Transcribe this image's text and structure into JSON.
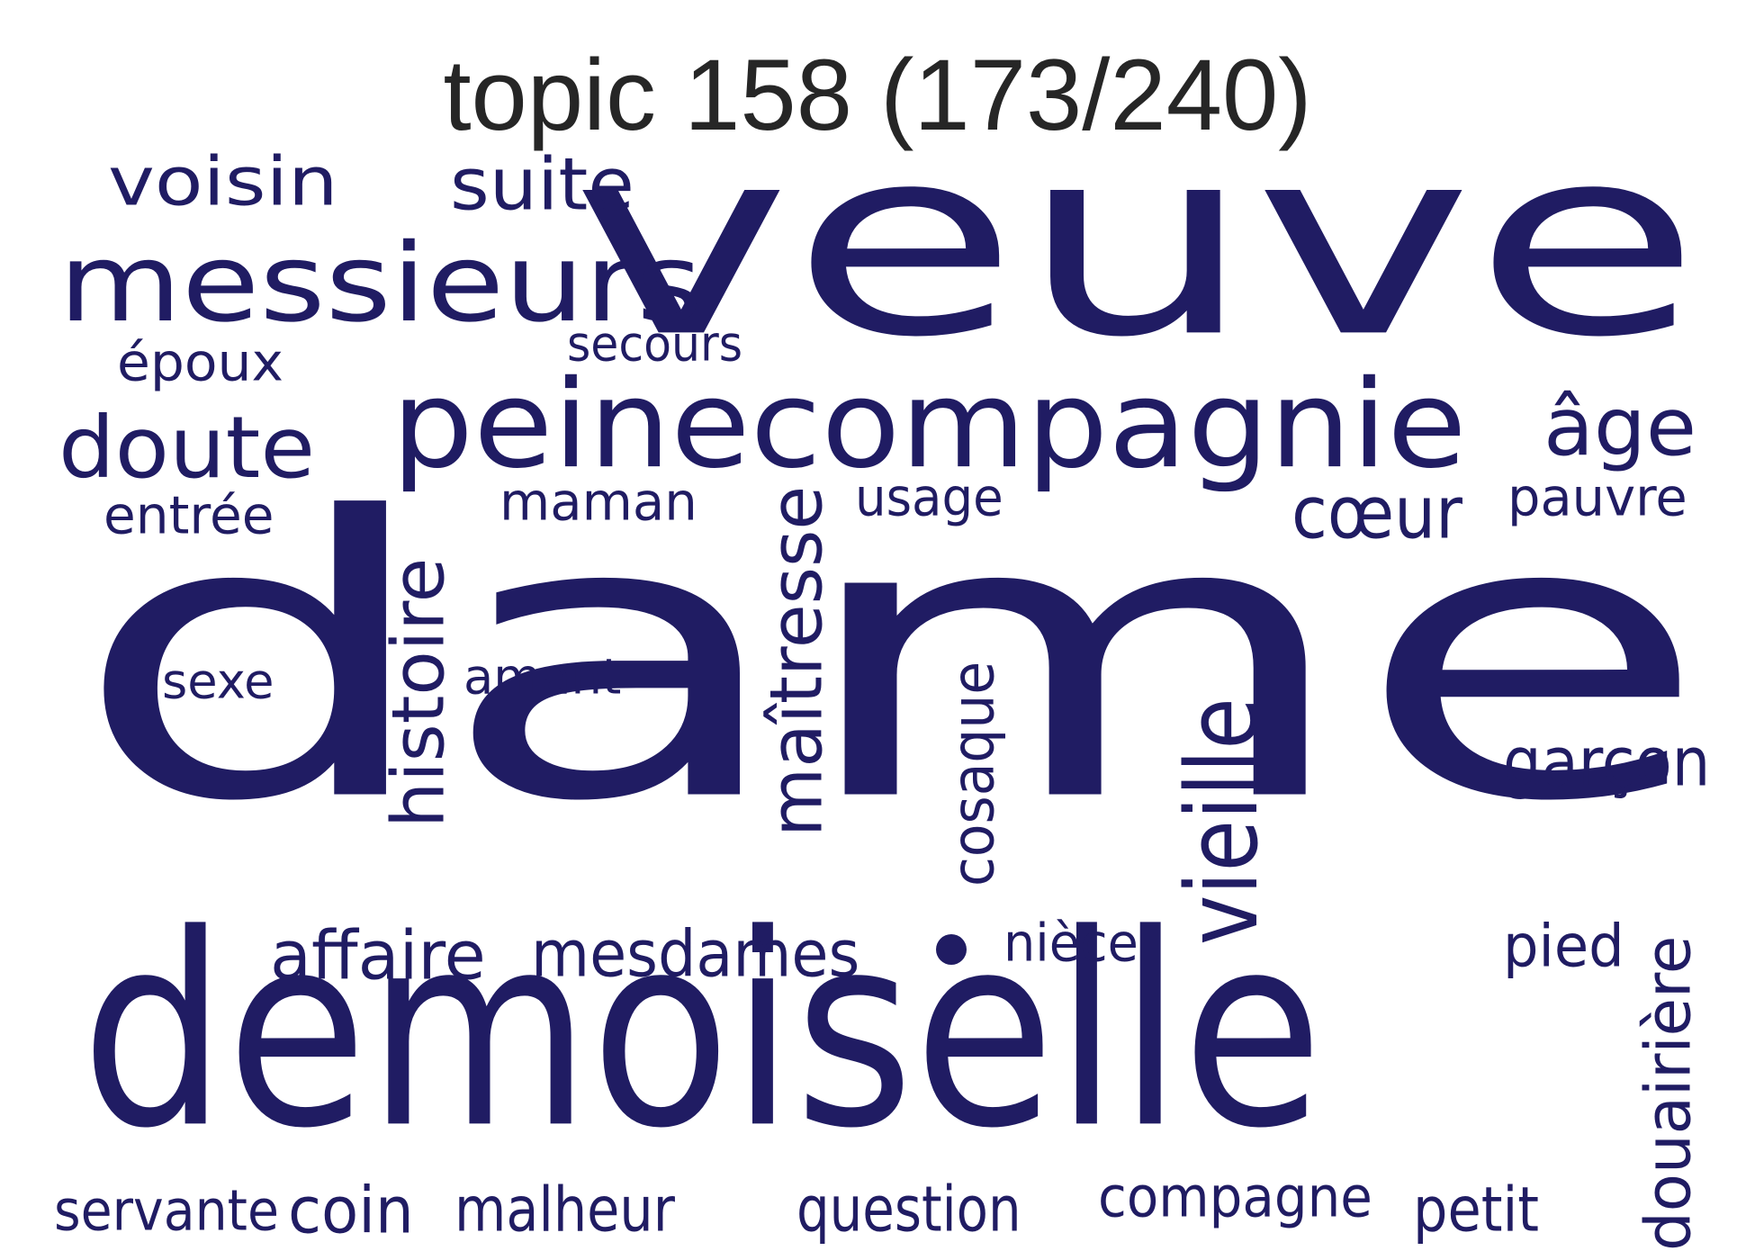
{
  "title": "topic 158 (173/240)",
  "word_color": "#201c63",
  "title_color": "#262626",
  "words": [
    {
      "id": "dame",
      "text": "dame"
    },
    {
      "id": "veuve",
      "text": "veuve"
    },
    {
      "id": "demoiselle",
      "text": "demoiselle"
    },
    {
      "id": "peinecompagnie",
      "text": "peinecompagnie"
    },
    {
      "id": "messieurs",
      "text": "messieurs"
    },
    {
      "id": "voisin",
      "text": "voisin"
    },
    {
      "id": "suite",
      "text": "suite"
    },
    {
      "id": "secours",
      "text": "secours"
    },
    {
      "id": "epoux",
      "text": "époux"
    },
    {
      "id": "doute",
      "text": "doute"
    },
    {
      "id": "entree",
      "text": "entrée"
    },
    {
      "id": "maman",
      "text": "maman"
    },
    {
      "id": "usage",
      "text": "usage"
    },
    {
      "id": "coeur",
      "text": "cœur"
    },
    {
      "id": "age",
      "text": "âge"
    },
    {
      "id": "pauvre",
      "text": "pauvre"
    },
    {
      "id": "sexe",
      "text": "sexe"
    },
    {
      "id": "amant",
      "text": "amant"
    },
    {
      "id": "histoire",
      "text": "histoire"
    },
    {
      "id": "maitresse",
      "text": "maîtresse"
    },
    {
      "id": "cosaque",
      "text": "cosaque"
    },
    {
      "id": "vieille",
      "text": "vieille"
    },
    {
      "id": "garcon",
      "text": "garçon"
    },
    {
      "id": "affaire",
      "text": "affaire"
    },
    {
      "id": "mesdames",
      "text": "mesdames"
    },
    {
      "id": "niece",
      "text": "nièce"
    },
    {
      "id": "pied",
      "text": "pied"
    },
    {
      "id": "douairiere",
      "text": "douairière"
    },
    {
      "id": "servante",
      "text": "servante"
    },
    {
      "id": "coin",
      "text": "coin"
    },
    {
      "id": "malheur",
      "text": "malheur"
    },
    {
      "id": "question",
      "text": "question"
    },
    {
      "id": "compagne",
      "text": "compagne"
    },
    {
      "id": "petit",
      "text": "petit"
    }
  ]
}
